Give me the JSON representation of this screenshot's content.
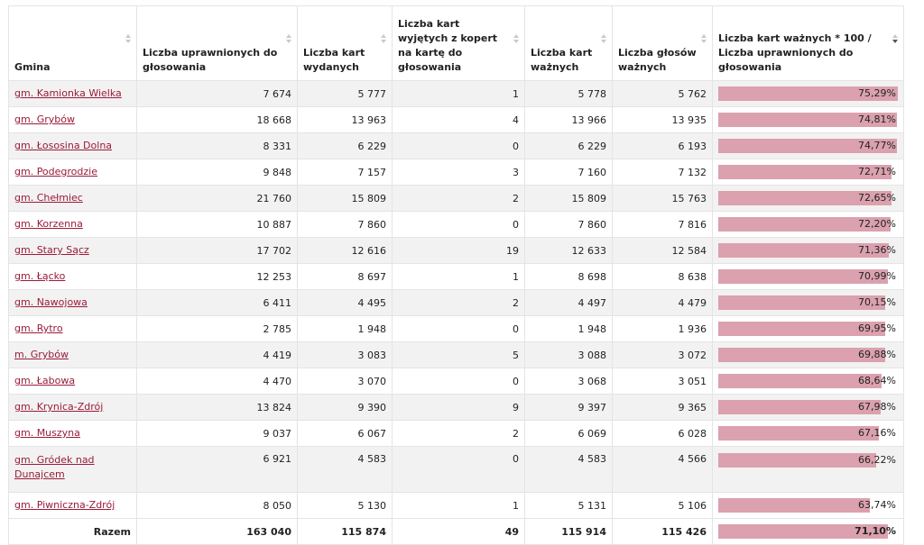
{
  "columns": [
    {
      "label": "Gmina",
      "sort": "none"
    },
    {
      "label": "Liczba uprawnionych do głosowania",
      "sort": "none"
    },
    {
      "label": "Liczba kart wydanych",
      "sort": "none"
    },
    {
      "label": "Liczba kart wyjętych z kopert na kartę do głosowania",
      "sort": "none"
    },
    {
      "label": "Liczba kart ważnych",
      "sort": "none"
    },
    {
      "label": "Liczba głosów ważnych",
      "sort": "none"
    },
    {
      "label": "Liczba kart ważnych * 100 / Liczba uprawnionych do głosowania",
      "sort": "desc"
    }
  ],
  "rows": [
    {
      "gmina": "gm. Kamionka Wielka",
      "uprawnieni": "7 674",
      "wydane": "5 777",
      "koperty": "1",
      "wazne_karty": "5 778",
      "wazne_glosy": "5 762",
      "frekwencja": "75,29%",
      "pct": 75.29
    },
    {
      "gmina": "gm. Grybów",
      "uprawnieni": "18 668",
      "wydane": "13 963",
      "koperty": "4",
      "wazne_karty": "13 966",
      "wazne_glosy": "13 935",
      "frekwencja": "74,81%",
      "pct": 74.81
    },
    {
      "gmina": "gm. Łososina Dolna",
      "uprawnieni": "8 331",
      "wydane": "6 229",
      "koperty": "0",
      "wazne_karty": "6 229",
      "wazne_glosy": "6 193",
      "frekwencja": "74,77%",
      "pct": 74.77
    },
    {
      "gmina": "gm. Podegrodzie",
      "uprawnieni": "9 848",
      "wydane": "7 157",
      "koperty": "3",
      "wazne_karty": "7 160",
      "wazne_glosy": "7 132",
      "frekwencja": "72,71%",
      "pct": 72.71
    },
    {
      "gmina": "gm. Chełmiec",
      "uprawnieni": "21 760",
      "wydane": "15 809",
      "koperty": "2",
      "wazne_karty": "15 809",
      "wazne_glosy": "15 763",
      "frekwencja": "72,65%",
      "pct": 72.65
    },
    {
      "gmina": "gm. Korzenna",
      "uprawnieni": "10 887",
      "wydane": "7 860",
      "koperty": "0",
      "wazne_karty": "7 860",
      "wazne_glosy": "7 816",
      "frekwencja": "72,20%",
      "pct": 72.2
    },
    {
      "gmina": "gm. Stary Sącz",
      "uprawnieni": "17 702",
      "wydane": "12 616",
      "koperty": "19",
      "wazne_karty": "12 633",
      "wazne_glosy": "12 584",
      "frekwencja": "71,36%",
      "pct": 71.36
    },
    {
      "gmina": "gm. Łącko",
      "uprawnieni": "12 253",
      "wydane": "8 697",
      "koperty": "1",
      "wazne_karty": "8 698",
      "wazne_glosy": "8 638",
      "frekwencja": "70,99%",
      "pct": 70.99
    },
    {
      "gmina": "gm. Nawojowa",
      "uprawnieni": "6 411",
      "wydane": "4 495",
      "koperty": "2",
      "wazne_karty": "4 497",
      "wazne_glosy": "4 479",
      "frekwencja": "70,15%",
      "pct": 70.15
    },
    {
      "gmina": "gm. Rytro",
      "uprawnieni": "2 785",
      "wydane": "1 948",
      "koperty": "0",
      "wazne_karty": "1 948",
      "wazne_glosy": "1 936",
      "frekwencja": "69,95%",
      "pct": 69.95
    },
    {
      "gmina": "m. Grybów",
      "uprawnieni": "4 419",
      "wydane": "3 083",
      "koperty": "5",
      "wazne_karty": "3 088",
      "wazne_glosy": "3 072",
      "frekwencja": "69,88%",
      "pct": 69.88
    },
    {
      "gmina": "gm. Łabowa",
      "uprawnieni": "4 470",
      "wydane": "3 070",
      "koperty": "0",
      "wazne_karty": "3 068",
      "wazne_glosy": "3 051",
      "frekwencja": "68,64%",
      "pct": 68.64
    },
    {
      "gmina": "gm. Krynica-Zdrój",
      "uprawnieni": "13 824",
      "wydane": "9 390",
      "koperty": "9",
      "wazne_karty": "9 397",
      "wazne_glosy": "9 365",
      "frekwencja": "67,98%",
      "pct": 67.98
    },
    {
      "gmina": "gm. Muszyna",
      "uprawnieni": "9 037",
      "wydane": "6 067",
      "koperty": "2",
      "wazne_karty": "6 069",
      "wazne_glosy": "6 028",
      "frekwencja": "67,16%",
      "pct": 67.16
    },
    {
      "gmina": "gm. Gródek nad Dunajcem",
      "uprawnieni": "6 921",
      "wydane": "4 583",
      "koperty": "0",
      "wazne_karty": "4 583",
      "wazne_glosy": "4 566",
      "frekwencja": "66,22%",
      "pct": 66.22
    },
    {
      "gmina": "gm. Piwniczna-Zdrój",
      "uprawnieni": "8 050",
      "wydane": "5 130",
      "koperty": "1",
      "wazne_karty": "5 131",
      "wazne_glosy": "5 106",
      "frekwencja": "63,74%",
      "pct": 63.74
    }
  ],
  "totals": {
    "label": "Razem",
    "uprawnieni": "163 040",
    "wydane": "115 874",
    "koperty": "49",
    "wazne_karty": "115 914",
    "wazne_glosy": "115 426",
    "frekwencja": "71,10%",
    "pct": 71.1
  },
  "colors": {
    "bar": "#dba1ae",
    "link": "#9b1b3a",
    "stripe": "#f2f2f2"
  }
}
